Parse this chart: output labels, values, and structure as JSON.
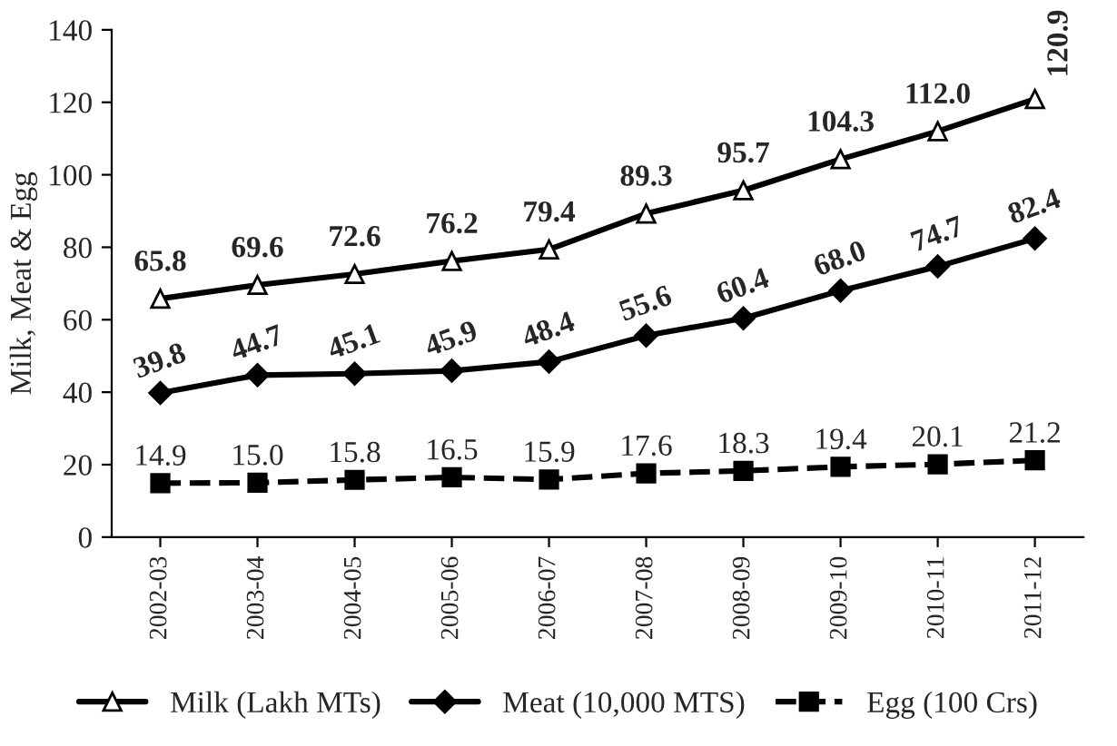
{
  "chart_data": {
    "type": "line",
    "ylabel": "Milk, Meat & Egg",
    "categories": [
      "2002-03",
      "2003-04",
      "2004-05",
      "2005-06",
      "2006-07",
      "2007-08",
      "2008-09",
      "2009-10",
      "2010-11",
      "2011-12"
    ],
    "series": [
      {
        "name": "Milk (Lakh MTs)",
        "color": "#000000",
        "marker": "triangle",
        "line_style": "solid",
        "values": [
          65.8,
          69.6,
          72.6,
          76.2,
          79.4,
          89.3,
          95.7,
          104.3,
          112,
          120.9
        ],
        "value_labels": [
          "65.8",
          "69.6",
          "72.6",
          "76.2",
          "79.4",
          "89.3",
          "95.7",
          "104.3",
          "112.0",
          "120.9"
        ]
      },
      {
        "name": "Meat (10,000 MTS)",
        "color": "#000000",
        "marker": "diamond",
        "line_style": "solid",
        "values": [
          39.8,
          44.7,
          45.1,
          45.9,
          48.4,
          55.6,
          60.4,
          68,
          74.7,
          82.4
        ],
        "value_labels": [
          "39.8",
          "44.7",
          "45.1",
          "45.9",
          "48.4",
          "55.6",
          "60.4",
          "68.0",
          "74.7",
          "82.4"
        ]
      },
      {
        "name": "Egg (100 Crs)",
        "color": "#000000",
        "marker": "square",
        "line_style": "dashed",
        "values": [
          14.9,
          15,
          15.8,
          16.5,
          15.9,
          17.6,
          18.3,
          19.4,
          20.1,
          21.2
        ],
        "value_labels": [
          "14.9",
          "15.0",
          "15.8",
          "16.5",
          "15.9",
          "17.6",
          "18.3",
          "19.4",
          "20.1",
          "21.2"
        ]
      }
    ],
    "ylim": [
      0,
      140
    ],
    "yticks": [
      0,
      20,
      40,
      60,
      80,
      100,
      120,
      140
    ],
    "grid": false,
    "legend": "bottom"
  }
}
